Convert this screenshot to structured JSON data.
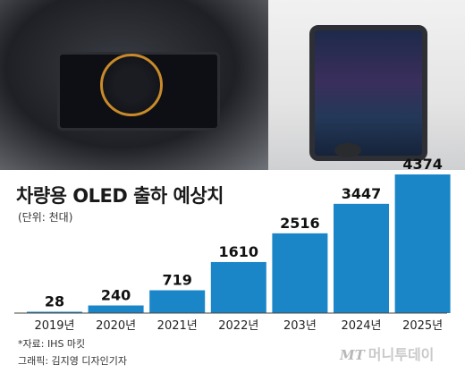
{
  "title": "차량용 OLED 출하 예상치",
  "unit": "(단위: 천대)",
  "source": "*자료: IHS 마킷",
  "graphic": "그래픽: 김지영 디자인기자",
  "logo": {
    "mt": "MT",
    "name": "머니투데이"
  },
  "colors": {
    "bar": "#1a86c8"
  },
  "chart_data": {
    "type": "bar",
    "title": "차량용 OLED 출하 예상치",
    "ylabel": "(단위: 천대)",
    "xlabel": "",
    "categories": [
      "2019년",
      "2020년",
      "2021년",
      "2022년",
      "203년",
      "2024년",
      "2025년"
    ],
    "values": [
      28,
      240,
      719,
      1610,
      2516,
      3447,
      4374
    ],
    "value_labels": [
      "28",
      "240",
      "719",
      "1610",
      "2516",
      "3447",
      "4374"
    ],
    "ylim": [
      0,
      4374
    ],
    "grid": false,
    "legend": "none"
  }
}
